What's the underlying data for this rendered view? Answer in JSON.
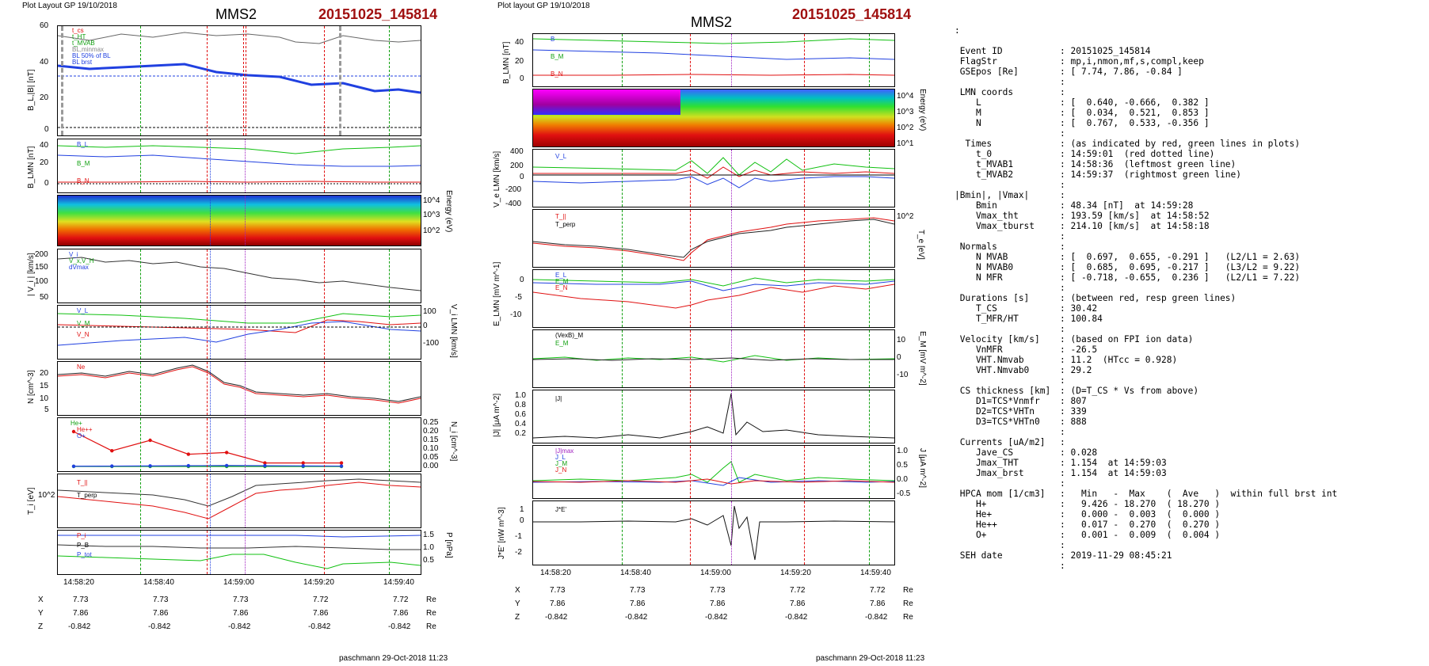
{
  "left_plot": {
    "layout_label": "Plot Layout GP 19/10/2018",
    "title": "MMS2",
    "event": "20151025_145814",
    "footer": "paschmann 29-Oct-2018 11:23",
    "time_ticks": [
      "14:58:20",
      "14:58:40",
      "14:59:00",
      "14:59:20",
      "14:59:40"
    ],
    "panels": [
      {
        "id": "b",
        "ylabel": "B_L,|B| [nT]",
        "yticks": [
          "60",
          "40",
          "20",
          "0"
        ],
        "legend": [
          "t_cs",
          "t_HT",
          "t_MVAB",
          "BL,minmax",
          "BL 50% of BL",
          "BL brst"
        ]
      },
      {
        "id": "blmn",
        "ylabel": "B_LMN [nT]",
        "yticks": [
          "40",
          "20",
          "0"
        ],
        "legend": [
          "B_L",
          "B_M",
          "B_N"
        ]
      },
      {
        "id": "spec",
        "ylabel": "Energy (eV)",
        "yticks": [
          "10^4",
          "10^3",
          "10^2"
        ]
      },
      {
        "id": "vi",
        "ylabel": "| V_i | [km/s]",
        "yticks": [
          "200",
          "150",
          "100",
          "50"
        ],
        "legend": [
          "V_i",
          "V_x,V_H",
          "dVmax"
        ]
      },
      {
        "id": "vlmn",
        "ylabel": "V_i LMN [km/s]",
        "yticks": [
          "100",
          "0",
          "-100"
        ],
        "legend": [
          "V_L",
          "V_M",
          "V_N"
        ]
      },
      {
        "id": "n",
        "ylabel": "N [cm^-3]",
        "yticks": [
          "20",
          "15",
          "10",
          "5"
        ],
        "legend": [
          "Ne"
        ]
      },
      {
        "id": "hpca",
        "ylabel": "N_i [cm^-3]",
        "yticks": [
          "0.25",
          "0.20",
          "0.15",
          "0.10",
          "0.05",
          "0.00"
        ],
        "legend": [
          "He+",
          "He++",
          "O+"
        ]
      },
      {
        "id": "ti",
        "ylabel": "T_i [eV]",
        "yticks": [
          "10^2"
        ],
        "legend": [
          "T_||",
          "T_perp"
        ]
      },
      {
        "id": "p",
        "ylabel": "P [nPa]",
        "yticks": [
          "1.5",
          "1.0",
          "0.5"
        ],
        "legend": [
          "P_i",
          "P_B",
          "P_tot"
        ]
      }
    ],
    "position": {
      "rows": [
        {
          "name": "X",
          "values": [
            "7.73",
            "7.73",
            "7.73",
            "7.72",
            "7.72"
          ],
          "unit": "Re"
        },
        {
          "name": "Y",
          "values": [
            "7.86",
            "7.86",
            "7.86",
            "7.86",
            "7.86"
          ],
          "unit": "Re"
        },
        {
          "name": "Z",
          "values": [
            "-0.842",
            "-0.842",
            "-0.842",
            "-0.842",
            "-0.842"
          ],
          "unit": "Re"
        }
      ]
    }
  },
  "right_plot": {
    "layout_label": "Plot layout GP 19/10/2018",
    "title": "MMS2",
    "event": "20151025_145814",
    "footer": "paschmann 29-Oct-2018 11:23",
    "time_ticks": [
      "14:58:20",
      "14:58:40",
      "14:59:00",
      "14:59:20",
      "14:59:40"
    ],
    "panels": [
      {
        "id": "blmn",
        "ylabel": "B_LMN [nT]",
        "yticks": [
          "40",
          "20",
          "0"
        ],
        "legend": [
          "B",
          "B_M",
          "B_N"
        ]
      },
      {
        "id": "spec",
        "ylabel": "Energy (eV)",
        "yticks": [
          "10^4",
          "10^3",
          "10^2",
          "10^1"
        ]
      },
      {
        "id": "ve",
        "ylabel": "V_e LMN [km/s]",
        "yticks": [
          "400",
          "200",
          "0",
          "-200",
          "-400"
        ],
        "legend": [
          "V_L"
        ]
      },
      {
        "id": "te",
        "ylabel": "T_e [eV]",
        "yticks": [
          "10^2"
        ],
        "legend": [
          "T_||",
          "T_perp"
        ]
      },
      {
        "id": "e",
        "ylabel": "E_LMN [mV m^-1]",
        "yticks": [
          "0",
          "-5",
          "-10"
        ],
        "legend": [
          "E_L",
          "E_M",
          "E_N"
        ]
      },
      {
        "id": "vexb",
        "ylabel": "E_M [mV m^-2]",
        "yticks": [
          "10",
          "0",
          "-10"
        ],
        "legend": [
          "(VexB)_M",
          "E_M"
        ]
      },
      {
        "id": "j",
        "ylabel": "|J| [μA m^-2]",
        "yticks": [
          "1.0",
          "0.8",
          "0.6",
          "0.4",
          "0.2"
        ],
        "legend": [
          "|J|"
        ]
      },
      {
        "id": "jlmn",
        "ylabel": "J [μA m^-2]",
        "yticks": [
          "1.0",
          "0.5",
          "0.0",
          "-0.5"
        ],
        "legend": [
          "|J|max",
          "J_L",
          "J_M",
          "J_N"
        ]
      },
      {
        "id": "je",
        "ylabel": "J*E' [nW m^-3]",
        "yticks": [
          "1",
          "0",
          "-1",
          "-2"
        ],
        "legend": [
          "J*E'"
        ]
      }
    ],
    "position": {
      "rows": [
        {
          "name": "X",
          "values": [
            "7.73",
            "7.73",
            "7.73",
            "7.72",
            "7.72"
          ],
          "unit": "Re"
        },
        {
          "name": "Y",
          "values": [
            "7.86",
            "7.86",
            "7.86",
            "7.86",
            "7.86"
          ],
          "unit": "Re"
        },
        {
          "name": "Z",
          "values": [
            "-0.842",
            "-0.842",
            "-0.842",
            "-0.842",
            "-0.842"
          ],
          "unit": "Re"
        }
      ]
    }
  },
  "info": {
    "lead": ":",
    "lines": [
      [
        " Event ID",
        ": 20151025_145814"
      ],
      [
        " FlagStr",
        ": mp,i,nmon,mf,s,compl,keep"
      ],
      [
        " GSEpos [Re]",
        ": [ 7.74, 7.86, -0.84 ]"
      ],
      [
        "",
        ":"
      ],
      [
        " LMN coords",
        ":"
      ],
      [
        "    L",
        ": [  0.640, -0.666,  0.382 ]"
      ],
      [
        "    M",
        ": [  0.034,  0.521,  0.853 ]"
      ],
      [
        "    N",
        ": [  0.767,  0.533, -0.356 ]"
      ],
      [
        "",
        ":"
      ],
      [
        "  Times",
        ": (as indicated by red, green lines in plots)"
      ],
      [
        "    t_0",
        ": 14:59:01  (red dotted line)"
      ],
      [
        "    t_MVAB1",
        ": 14:58:36  (leftmost green line)"
      ],
      [
        "    t_MVAB2",
        ": 14:59:37  (rightmost green line)"
      ],
      [
        "",
        ":"
      ],
      [
        "|Bmin|, |Vmax|",
        ":"
      ],
      [
        "    Bmin",
        ": 48.34 [nT]  at 14:59:28"
      ],
      [
        "    Vmax_tht",
        ": 193.59 [km/s]  at 14:58:52"
      ],
      [
        "    Vmax_tburst",
        ": 214.10 [km/s]  at 14:58:18"
      ],
      [
        "",
        ":"
      ],
      [
        " Normals",
        ":"
      ],
      [
        "    N MVAB",
        ": [  0.697,  0.655, -0.291 ]   (L2/L1 = 2.63)"
      ],
      [
        "    N MVAB0",
        ": [  0.685,  0.695, -0.217 ]   (L3/L2 = 9.22)"
      ],
      [
        "    N MFR",
        ": [ -0.718, -0.655,  0.236 ]   (L2/L1 = 7.22)"
      ],
      [
        "",
        ":"
      ],
      [
        " Durations [s]",
        ": (between red, resp green lines)"
      ],
      [
        "    T_CS",
        ": 30.42"
      ],
      [
        "    T_MFR/HT",
        ": 100.84"
      ],
      [
        "",
        ":"
      ],
      [
        " Velocity [km/s]",
        ": (based on FPI ion data)"
      ],
      [
        "    VnMFR",
        ": -26.5"
      ],
      [
        "    VHT.Nmvab",
        ": 11.2  (HTcc = 0.928)"
      ],
      [
        "    VHT.Nmvab0",
        ": 29.2"
      ],
      [
        "",
        ":"
      ],
      [
        " CS thickness [km]",
        ": (D=T_CS * Vs from above)"
      ],
      [
        "    D1=TCS*Vnmfr",
        ": 807"
      ],
      [
        "    D2=TCS*VHTn",
        ": 339"
      ],
      [
        "    D3=TCS*VHTn0",
        ": 888"
      ],
      [
        "",
        ":"
      ],
      [
        " Currents [uA/m2]",
        ":"
      ],
      [
        "    Jave_CS",
        ": 0.028"
      ],
      [
        "    Jmax_THT",
        ": 1.154  at 14:59:03"
      ],
      [
        "    Jmax_brst",
        ": 1.154  at 14:59:03"
      ],
      [
        "",
        ":"
      ],
      [
        " HPCA mom [1/cm3]",
        ":   Min   -  Max    (  Ave   )  within full brst int"
      ],
      [
        "    H+",
        ":   9.426 - 18.270  ( 18.270 )"
      ],
      [
        "    He+",
        ":   0.000 -  0.003  (  0.000 )"
      ],
      [
        "    He++",
        ":   0.017 -  0.270  (  0.270 )"
      ],
      [
        "    O+",
        ":   0.001 -  0.009  (  0.004 )"
      ],
      [
        "",
        ":"
      ],
      [
        " SEH date",
        ": 2019-11-29 08:45:21"
      ],
      [
        "",
        ":"
      ]
    ]
  },
  "chart_data": [
    {
      "type": "line",
      "title": "MMS2",
      "panel": "B_L,|B| (left)",
      "xlabel": "",
      "x": [
        "14:58:20",
        "14:58:40",
        "14:59:00",
        "14:59:20",
        "14:59:40"
      ],
      "ylabel": "B_L,|B| [nT]",
      "ylim": [
        0,
        60
      ],
      "series": [
        {
          "name": "B_L brst",
          "values": [
            34,
            33,
            30,
            24,
            20
          ]
        },
        {
          "name": "|B|",
          "values": [
            57,
            55,
            55,
            53,
            50
          ]
        }
      ]
    },
    {
      "type": "line",
      "title": "MMS2",
      "panel": "|V_i| (left)",
      "x": [
        "14:58:20",
        "14:58:40",
        "14:59:00",
        "14:59:20",
        "14:59:40"
      ],
      "ylabel": "| V_i | [km/s]",
      "ylim": [
        50,
        200
      ],
      "series": [
        {
          "name": "V_i",
          "values": [
            165,
            150,
            130,
            110,
            90
          ]
        }
      ]
    },
    {
      "type": "scatter",
      "title": "MMS2",
      "panel": "HPCA N_i (left)",
      "x": [
        "14:58:13",
        "14:58:23",
        "14:58:33",
        "14:58:43",
        "14:58:53",
        "14:59:03",
        "14:59:13",
        "14:59:23"
      ],
      "ylabel": "N_i [cm^-3]",
      "ylim": [
        0,
        0.25
      ],
      "series": [
        {
          "name": "He++",
          "values": [
            0.2,
            0.09,
            0.15,
            0.07,
            0.08,
            0.02,
            0.02,
            0.02
          ]
        },
        {
          "name": "He+",
          "values": [
            0.0,
            0.0,
            0.0,
            0.0,
            0.0,
            0.0,
            0.0,
            0.0
          ]
        },
        {
          "name": "O+",
          "values": [
            0.001,
            0.002,
            0.003,
            0.004,
            0.005,
            0.004,
            0.003,
            0.002
          ]
        }
      ]
    }
  ],
  "colors": {
    "red": "#e01010",
    "green": "#10b010",
    "blue": "#2040e0",
    "purple": "#a020c0",
    "event": "#a01010"
  }
}
